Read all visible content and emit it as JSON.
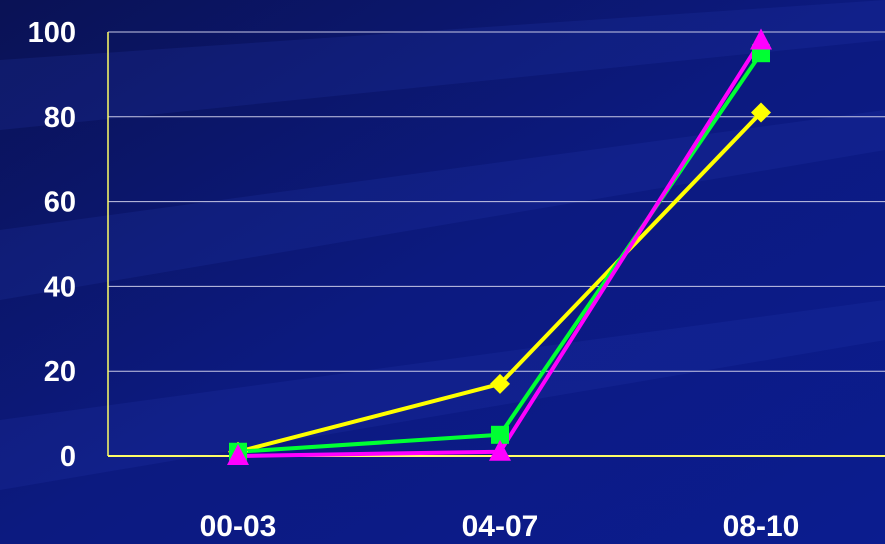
{
  "colors": {
    "background_top": "#0a1560",
    "background_bottom": "#0b1a8a",
    "gridline": "#c8c8e6",
    "axis": "#ffff66",
    "text": "#ffffff"
  },
  "chart_data": {
    "type": "line",
    "title": "",
    "xlabel": "",
    "ylabel": "",
    "categories": [
      "00-03",
      "04-07",
      "08-10"
    ],
    "ylim": [
      0,
      100
    ],
    "yticks": [
      0,
      20,
      40,
      60,
      80,
      100
    ],
    "ytick_labels": [
      "0",
      "20",
      "40",
      "60",
      "80",
      "100"
    ],
    "grid": true,
    "legend": "none",
    "series": [
      {
        "color": "#ffff00",
        "marker": "diamond",
        "values": [
          1,
          17,
          81
        ]
      },
      {
        "color": "#00ff33",
        "marker": "square",
        "values": [
          1,
          5,
          95
        ]
      },
      {
        "color": "#ff00ff",
        "marker": "triangle",
        "values": [
          0,
          1,
          98
        ]
      }
    ]
  }
}
